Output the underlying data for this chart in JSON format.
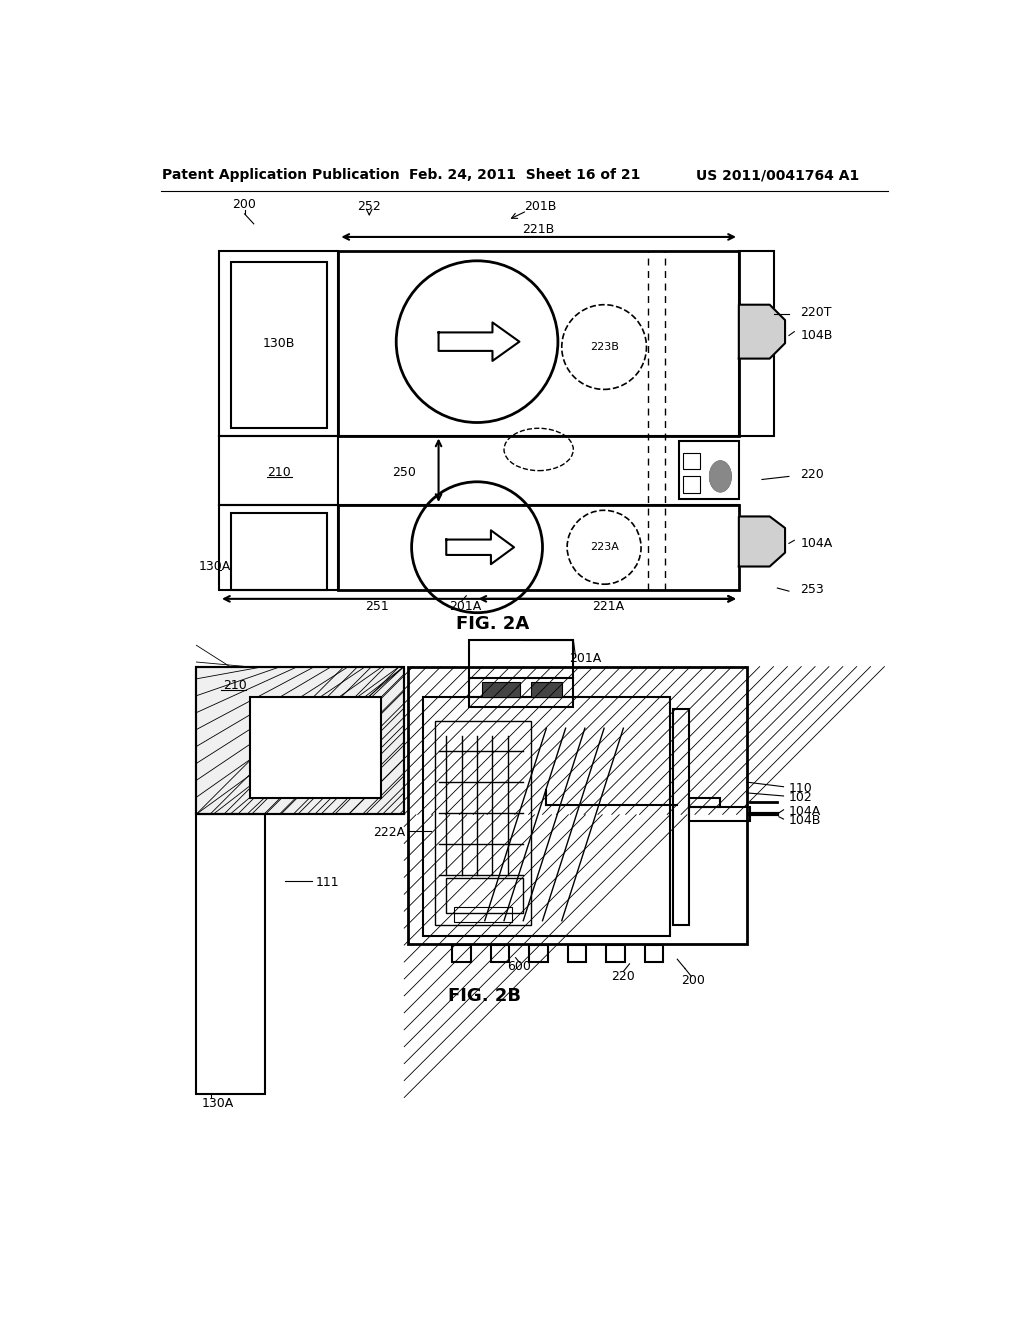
{
  "header_left": "Patent Application Publication",
  "header_center": "Feb. 24, 2011  Sheet 16 of 21",
  "header_right": "US 2011/0041764 A1",
  "fig2a_label": "FIG. 2A",
  "fig2b_label": "FIG. 2B",
  "bg_color": "#ffffff",
  "lc": "#000000"
}
